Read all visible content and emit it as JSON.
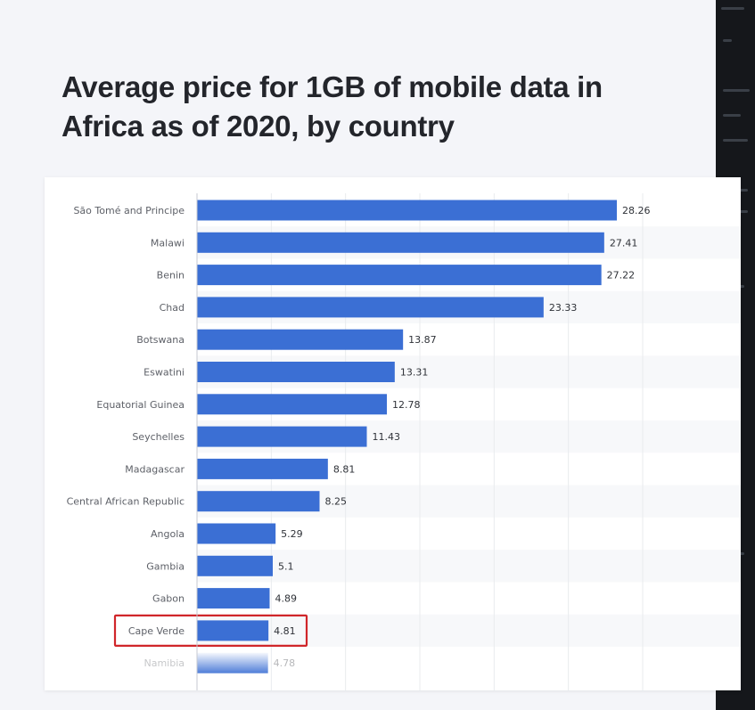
{
  "page": {
    "title": "Average price for 1GB of mobile data in Africa as of 2020, by country"
  },
  "colors": {
    "background": "#f4f5f9",
    "bar": "#3b6fd4",
    "highlight": "#d0262a",
    "title": "#23252b",
    "side_panel": "#15171b"
  },
  "chart_data": {
    "type": "bar",
    "orientation": "horizontal",
    "title": "Average price for 1GB of mobile data in Africa as of 2020, by country",
    "xlabel": "",
    "ylabel": "",
    "xlim": [
      0,
      35
    ],
    "grid": true,
    "categories": [
      "São Tomé and Principe",
      "Malawi",
      "Benin",
      "Chad",
      "Botswana",
      "Eswatini",
      "Equatorial Guinea",
      "Seychelles",
      "Madagascar",
      "Central African Republic",
      "Angola",
      "Gambia",
      "Gabon",
      "Cape Verde",
      "Namibia"
    ],
    "values": [
      28.26,
      27.41,
      27.22,
      23.33,
      13.87,
      13.31,
      12.78,
      11.43,
      8.81,
      8.25,
      5.29,
      5.1,
      4.89,
      4.81,
      4.78
    ],
    "value_labels": [
      "28.26",
      "27.41",
      "27.22",
      "23.33",
      "13.87",
      "13.31",
      "12.78",
      "11.43",
      "8.81",
      "8.25",
      "5.29",
      "5.1",
      "4.89",
      "4.81",
      "4.78"
    ],
    "highlighted_category": "Cape Verde"
  }
}
